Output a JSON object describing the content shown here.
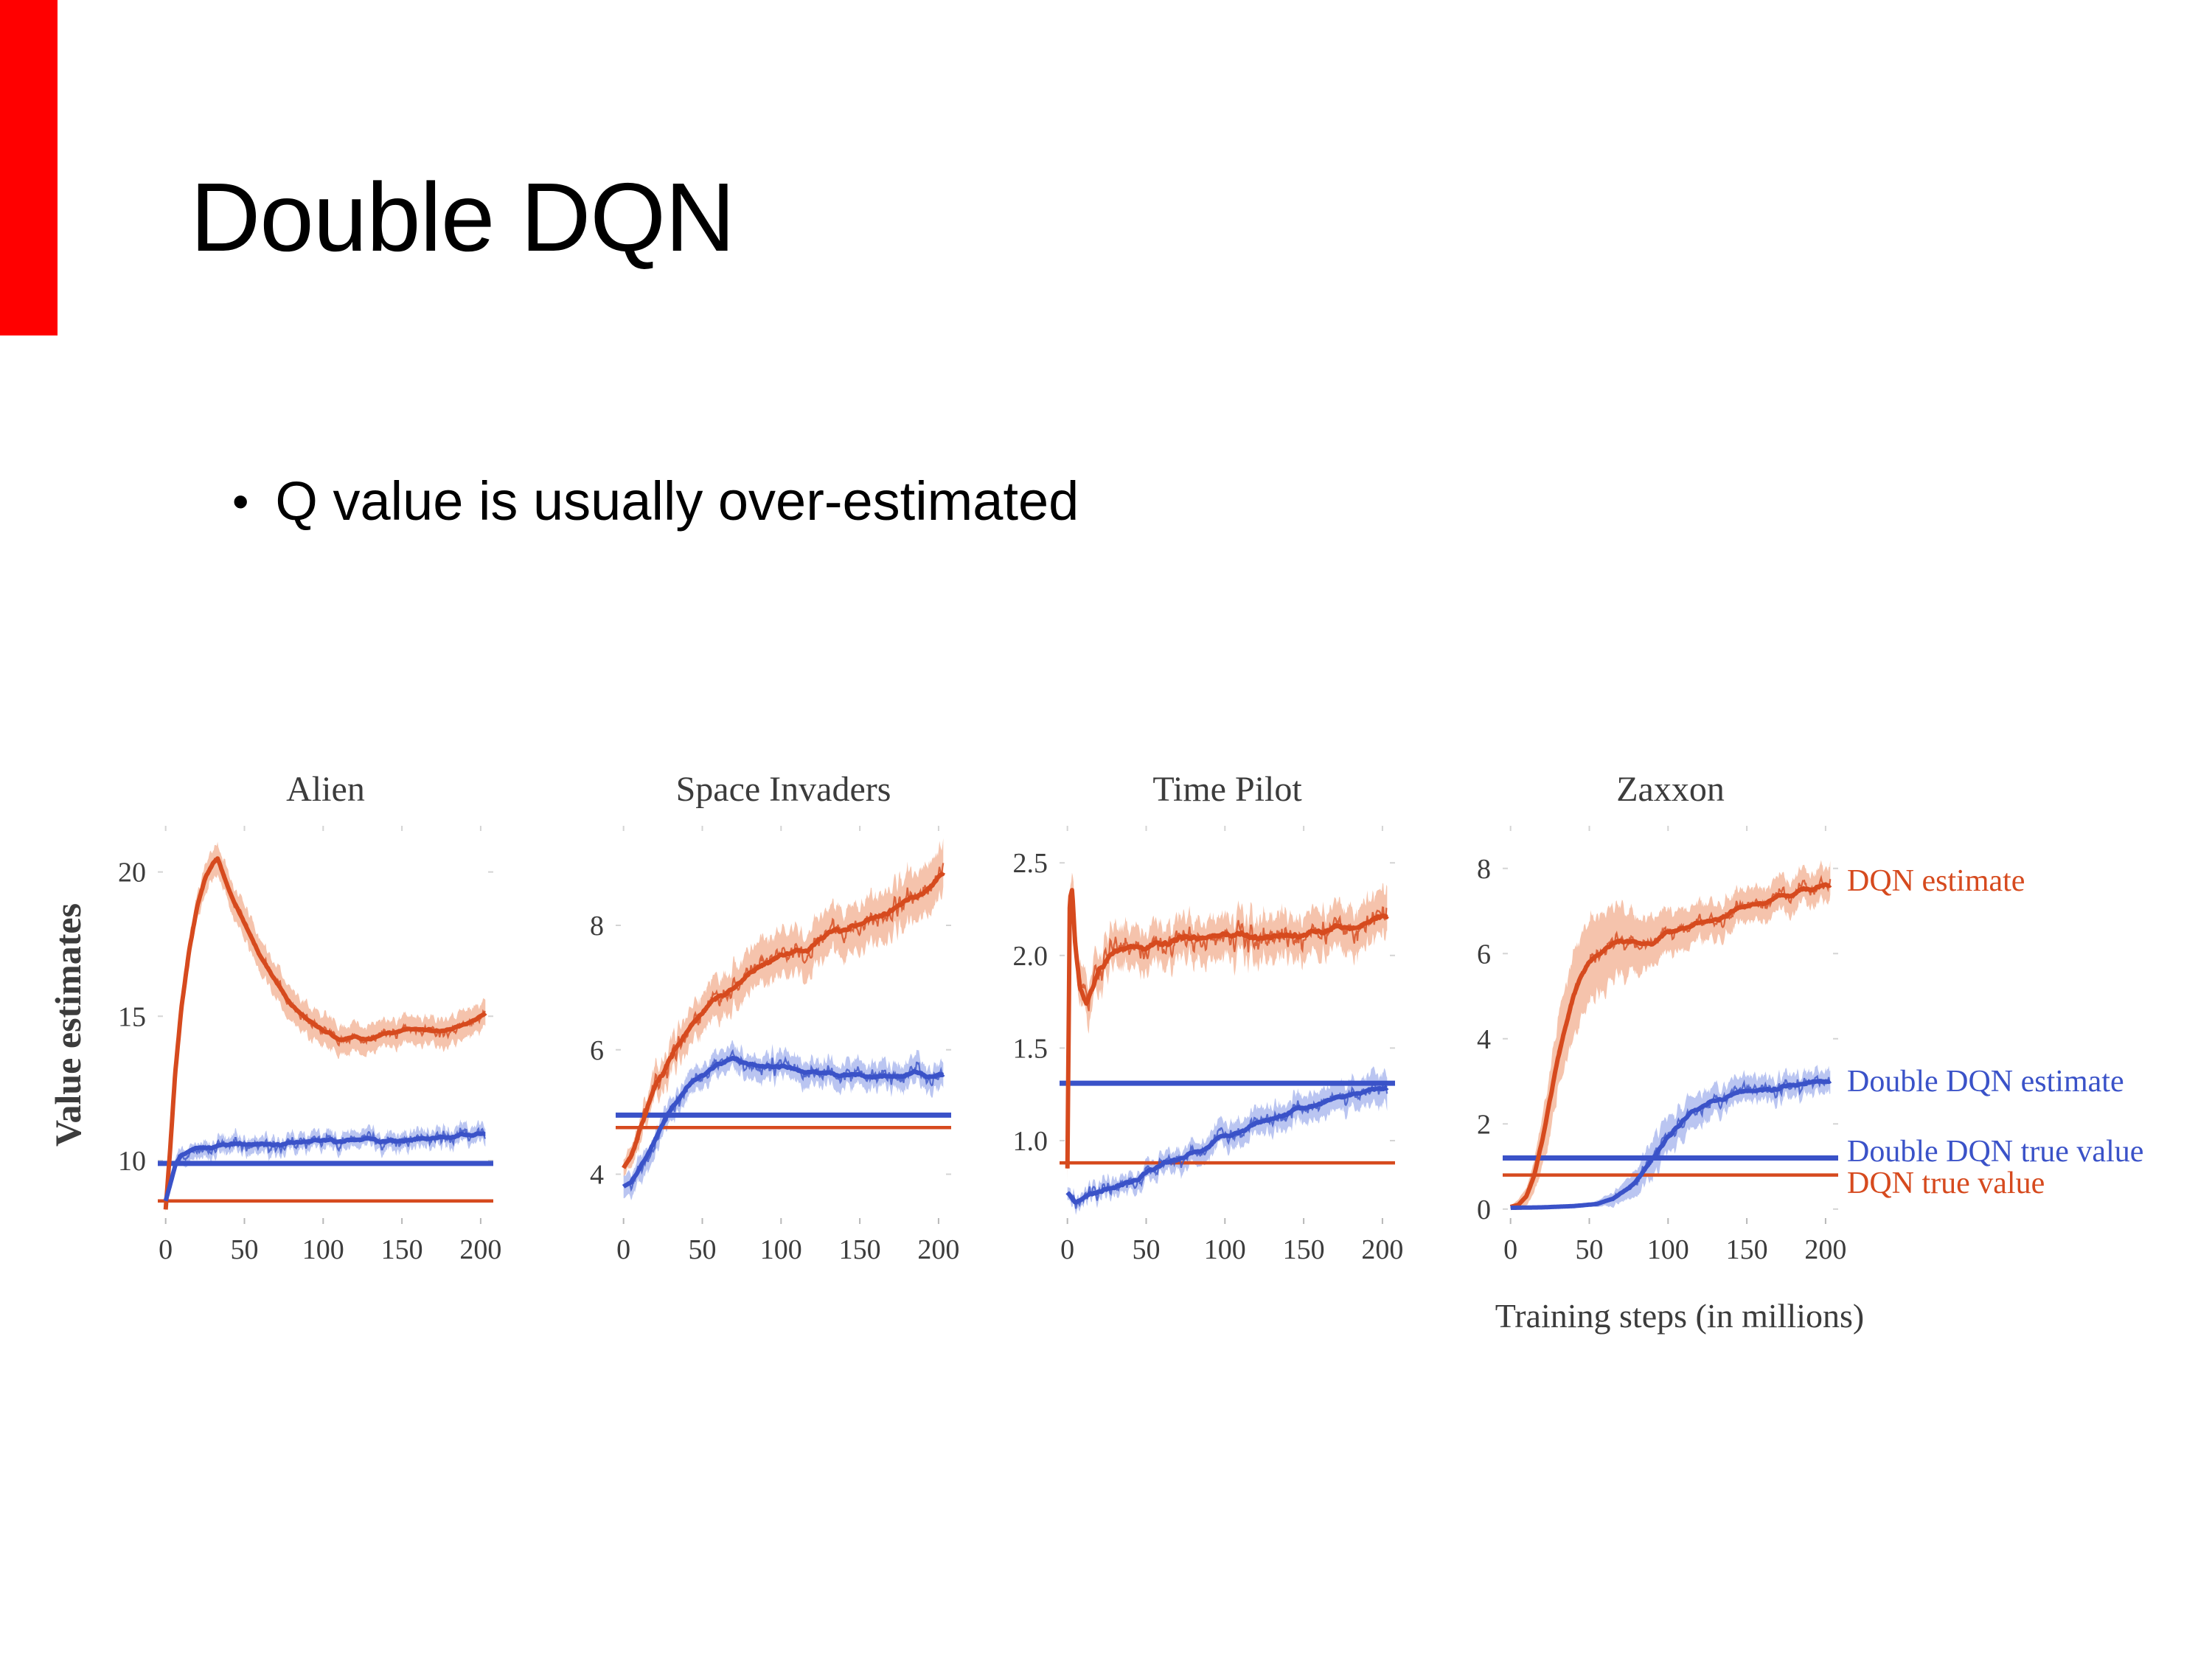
{
  "slide": {
    "title": "Double DQN",
    "bullet_marker": "•",
    "bullet": "Q value is usually over-estimated",
    "accent_bar_color": "#ff0000"
  },
  "figure": {
    "ylabel": "Value estimates",
    "xlabel": "Training steps (in millions)",
    "colors": {
      "dqn": "#d64a1e",
      "dqn_band": "#f3b89e",
      "ddqn": "#3a52c8",
      "ddqn_band": "#aebbee"
    },
    "legend": [
      {
        "label": "DQN estimate",
        "color": "dqn",
        "value": 7.7
      },
      {
        "label": "Double DQN estimate",
        "color": "ddqn",
        "value": 3.0
      },
      {
        "label": "Double DQN true value",
        "color": "ddqn",
        "value": 1.35
      },
      {
        "label": "DQN true value",
        "color": "dqn",
        "value": 0.6
      }
    ]
  },
  "chart_data": [
    {
      "type": "line",
      "title": "Alien",
      "xlim": [
        -5,
        208
      ],
      "ylim": [
        7.8,
        21.6
      ],
      "xticks": [
        "0",
        "50",
        "100",
        "150",
        "200"
      ],
      "xtick_values": [
        0,
        50,
        100,
        150,
        200
      ],
      "yticks": [
        "10",
        "15",
        "20"
      ],
      "ytick_values": [
        10,
        15,
        20
      ],
      "series": [
        {
          "name": "DQN estimate",
          "color": "dqn",
          "seed": 11,
          "noise": 0.32,
          "noise_ramp": [
            2,
            14
          ],
          "x": [
            0,
            3,
            6,
            10,
            15,
            20,
            25,
            30,
            33,
            36,
            40,
            50,
            60,
            70,
            80,
            90,
            100,
            110,
            120,
            130,
            140,
            150,
            160,
            170,
            180,
            190,
            200,
            203
          ],
          "y": [
            8.3,
            10.5,
            13.0,
            15.3,
            17.3,
            18.8,
            19.8,
            20.3,
            20.5,
            20.0,
            19.4,
            18.2,
            17.1,
            16.2,
            15.4,
            14.9,
            14.5,
            14.2,
            14.3,
            14.2,
            14.4,
            14.5,
            14.6,
            14.5,
            14.6,
            14.7,
            15.0,
            15.1
          ],
          "band_x": [
            0,
            10,
            25,
            40,
            70,
            100,
            140,
            200
          ],
          "band_v": [
            0.15,
            0.5,
            0.75,
            0.85,
            0.9,
            0.8,
            0.7,
            0.7
          ]
        },
        {
          "name": "Double DQN estimate",
          "color": "ddqn",
          "seed": 12,
          "noise": 0.42,
          "noise_ramp": [
            2,
            10
          ],
          "x": [
            0,
            3,
            6,
            10,
            15,
            20,
            30,
            50,
            75,
            100,
            125,
            150,
            175,
            200,
            203
          ],
          "y": [
            8.6,
            9.2,
            9.8,
            10.2,
            10.4,
            10.5,
            10.5,
            10.6,
            10.6,
            10.7,
            10.7,
            10.7,
            10.8,
            10.9,
            10.9
          ],
          "band_x": [
            0,
            10,
            200
          ],
          "band_v": [
            0.1,
            0.4,
            0.45
          ]
        }
      ],
      "hlines": [
        {
          "name": "Double DQN true value",
          "color": "ddqn",
          "value": 9.9,
          "width": 7
        },
        {
          "name": "DQN true value",
          "color": "dqn",
          "value": 8.6,
          "width": 4.5
        }
      ]
    },
    {
      "type": "line",
      "title": "Space Invaders",
      "xlim": [
        -5,
        208
      ],
      "ylim": [
        3.2,
        9.6
      ],
      "xticks": [
        "0",
        "50",
        "100",
        "150",
        "200"
      ],
      "xtick_values": [
        0,
        50,
        100,
        150,
        200
      ],
      "yticks": [
        "4",
        "6",
        "8"
      ],
      "ytick_values": [
        4,
        6,
        8
      ],
      "series": [
        {
          "name": "DQN estimate",
          "color": "dqn",
          "seed": 21,
          "noise": 0.3,
          "noise_ramp": [
            0,
            6
          ],
          "x": [
            0,
            5,
            10,
            20,
            30,
            40,
            50,
            60,
            70,
            80,
            90,
            100,
            110,
            120,
            130,
            140,
            150,
            160,
            170,
            180,
            190,
            200,
            203
          ],
          "y": [
            4.1,
            4.3,
            4.7,
            5.4,
            5.9,
            6.3,
            6.6,
            6.85,
            7.0,
            7.2,
            7.35,
            7.5,
            7.6,
            7.7,
            7.85,
            7.95,
            8.05,
            8.15,
            8.25,
            8.4,
            8.5,
            8.75,
            8.8
          ],
          "band_x": [
            0,
            20,
            60,
            120,
            200
          ],
          "band_v": [
            0.2,
            0.38,
            0.5,
            0.55,
            0.6
          ]
        },
        {
          "name": "Double DQN estimate",
          "color": "ddqn",
          "seed": 22,
          "noise": 0.22,
          "noise_ramp": [
            0,
            6
          ],
          "x": [
            0,
            5,
            10,
            20,
            30,
            40,
            50,
            60,
            70,
            80,
            100,
            120,
            140,
            160,
            180,
            200,
            203
          ],
          "y": [
            3.8,
            3.9,
            4.1,
            4.6,
            5.05,
            5.4,
            5.6,
            5.75,
            5.85,
            5.8,
            5.7,
            5.65,
            5.6,
            5.55,
            5.6,
            5.6,
            5.6
          ],
          "band_x": [
            0,
            200
          ],
          "band_v": [
            0.28,
            0.3
          ]
        }
      ],
      "hlines": [
        {
          "name": "Double DQN true value",
          "color": "ddqn",
          "value": 4.95,
          "width": 7
        },
        {
          "name": "DQN true value",
          "color": "dqn",
          "value": 4.75,
          "width": 4.5
        }
      ]
    },
    {
      "type": "line",
      "title": "Time Pilot",
      "xlim": [
        -5,
        208
      ],
      "ylim": [
        0.55,
        2.7
      ],
      "xticks": [
        "0",
        "50",
        "100",
        "150",
        "200"
      ],
      "xtick_values": [
        0,
        50,
        100,
        150,
        200
      ],
      "yticks": [
        "1.0",
        "1.5",
        "2.0",
        "2.5"
      ],
      "ytick_values": [
        1.0,
        1.5,
        2.0,
        2.5
      ],
      "series": [
        {
          "name": "DQN estimate",
          "color": "dqn",
          "seed": 31,
          "noise": 0.13,
          "noise_ramp": [
            0,
            3
          ],
          "x": [
            0,
            1.5,
            3,
            5,
            8,
            12,
            16,
            20,
            30,
            40,
            50,
            75,
            100,
            125,
            150,
            175,
            200,
            203
          ],
          "y": [
            0.85,
            2.3,
            2.35,
            2.05,
            1.8,
            1.73,
            1.82,
            1.92,
            2.0,
            2.05,
            2.05,
            2.1,
            2.12,
            2.1,
            2.12,
            2.15,
            2.2,
            2.2
          ],
          "band_x": [
            0,
            5,
            20,
            200
          ],
          "band_v": [
            0.1,
            0.17,
            0.16,
            0.18
          ]
        },
        {
          "name": "Double DQN estimate",
          "color": "ddqn",
          "seed": 32,
          "noise": 0.07,
          "noise_ramp": [
            0,
            3
          ],
          "x": [
            0,
            5,
            10,
            20,
            30,
            40,
            50,
            60,
            75,
            90,
            100,
            115,
            130,
            145,
            160,
            175,
            190,
            200,
            203
          ],
          "y": [
            0.72,
            0.67,
            0.69,
            0.72,
            0.75,
            0.78,
            0.83,
            0.87,
            0.92,
            0.97,
            1.02,
            1.07,
            1.12,
            1.17,
            1.2,
            1.24,
            1.27,
            1.28,
            1.28
          ],
          "band_x": [
            0,
            30,
            100,
            200
          ],
          "band_v": [
            0.05,
            0.07,
            0.1,
            0.12
          ]
        }
      ],
      "hlines": [
        {
          "name": "Double DQN true value",
          "color": "ddqn",
          "value": 1.31,
          "width": 7
        },
        {
          "name": "DQN true value",
          "color": "dqn",
          "value": 0.88,
          "width": 4.5
        }
      ]
    },
    {
      "type": "line",
      "title": "Zaxxon",
      "xlim": [
        -5,
        208
      ],
      "ylim": [
        -0.35,
        9.0
      ],
      "xticks": [
        "0",
        "50",
        "100",
        "150",
        "200"
      ],
      "xtick_values": [
        0,
        50,
        100,
        150,
        200
      ],
      "yticks": [
        "0",
        "2",
        "4",
        "6",
        "8"
      ],
      "ytick_values": [
        0,
        2,
        4,
        6,
        8
      ],
      "series": [
        {
          "name": "DQN estimate",
          "color": "dqn",
          "seed": 41,
          "noise": 0.32,
          "noise_ramp": [
            8,
            25
          ],
          "x": [
            0,
            5,
            10,
            15,
            20,
            25,
            30,
            35,
            40,
            45,
            50,
            60,
            70,
            80,
            90,
            100,
            110,
            120,
            130,
            140,
            150,
            160,
            170,
            180,
            190,
            200,
            203
          ],
          "y": [
            0.05,
            0.1,
            0.3,
            0.8,
            1.6,
            2.6,
            3.5,
            4.3,
            5.0,
            5.5,
            5.8,
            6.1,
            6.3,
            6.3,
            6.2,
            6.5,
            6.6,
            6.7,
            6.8,
            7.0,
            7.1,
            7.2,
            7.3,
            7.4,
            7.5,
            7.6,
            7.6
          ],
          "band_x": [
            0,
            10,
            25,
            40,
            60,
            80,
            100,
            140,
            200
          ],
          "band_v": [
            0.05,
            0.3,
            1.2,
            1.5,
            1.4,
            1.0,
            0.75,
            0.6,
            0.6
          ]
        },
        {
          "name": "Double DQN estimate",
          "color": "ddqn",
          "seed": 42,
          "noise": 0.3,
          "noise_ramp": [
            55,
            90
          ],
          "x": [
            0,
            20,
            40,
            55,
            65,
            75,
            85,
            95,
            105,
            115,
            125,
            135,
            145,
            155,
            165,
            175,
            185,
            195,
            203
          ],
          "y": [
            0.03,
            0.04,
            0.07,
            0.12,
            0.25,
            0.5,
            0.9,
            1.4,
            1.9,
            2.3,
            2.5,
            2.6,
            2.7,
            2.75,
            2.8,
            2.9,
            2.95,
            3.0,
            3.0
          ],
          "band_x": [
            0,
            50,
            70,
            90,
            110,
            140,
            200
          ],
          "band_v": [
            0.02,
            0.05,
            0.3,
            0.65,
            0.6,
            0.45,
            0.4
          ]
        }
      ],
      "hlines": [
        {
          "name": "Double DQN true value",
          "color": "ddqn",
          "value": 1.2,
          "width": 7
        },
        {
          "name": "DQN true value",
          "color": "dqn",
          "value": 0.8,
          "width": 4.5
        }
      ]
    }
  ]
}
